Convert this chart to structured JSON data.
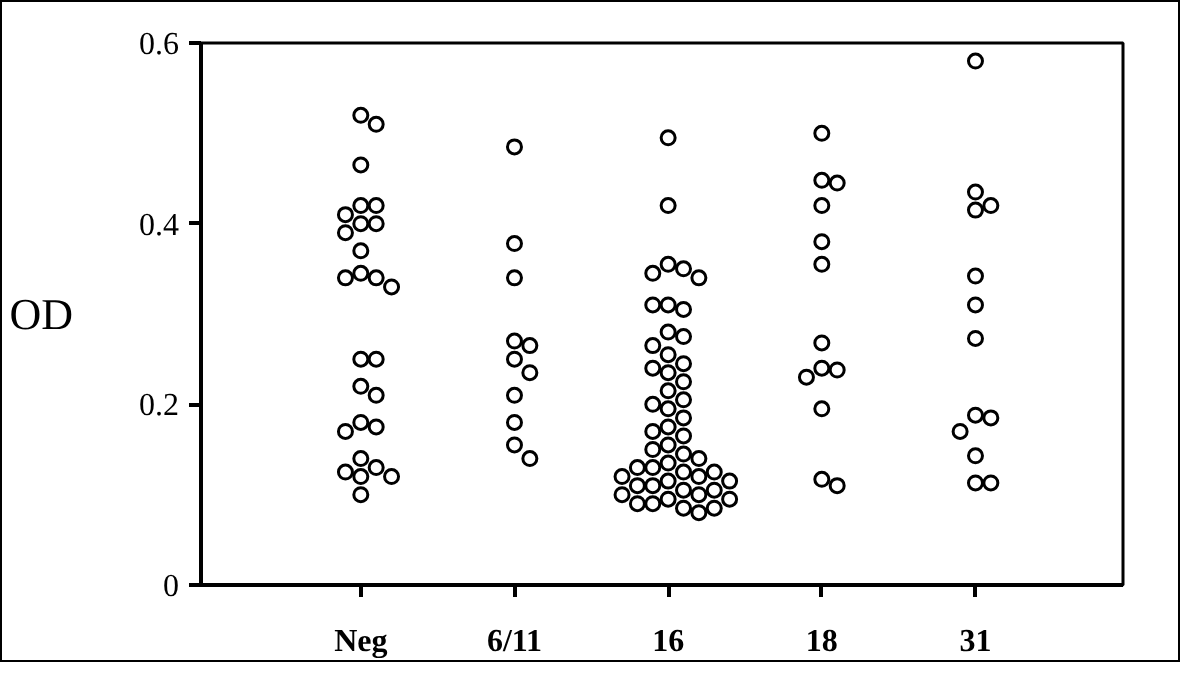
{
  "chart_data": {
    "type": "scatter",
    "ylabel": "OD",
    "categories": [
      "Neg",
      "6/11",
      "16",
      "18",
      "31"
    ],
    "ylim": [
      0,
      0.6
    ],
    "yticks": [
      0,
      0.2,
      0.4,
      0.6
    ],
    "grid": false,
    "marker": "circle",
    "series": [
      {
        "color": "#000000",
        "x": [
          "Neg",
          "Neg",
          "Neg",
          "Neg",
          "Neg",
          "Neg",
          "Neg",
          "Neg",
          "Neg",
          "Neg",
          "Neg",
          "Neg",
          "Neg",
          "Neg",
          "Neg",
          "Neg",
          "Neg",
          "Neg",
          "Neg",
          "Neg",
          "Neg",
          "Neg",
          "Neg",
          "Neg",
          "Neg",
          "Neg",
          "Neg"
        ],
        "values": [
          0.52,
          0.51,
          0.465,
          0.42,
          0.42,
          0.41,
          0.4,
          0.4,
          0.39,
          0.37,
          0.345,
          0.34,
          0.34,
          0.33,
          0.25,
          0.25,
          0.22,
          0.21,
          0.18,
          0.175,
          0.17,
          0.14,
          0.13,
          0.125,
          0.12,
          0.12,
          0.1
        ]
      },
      {
        "color": "#000000",
        "x": [
          "6/11",
          "6/11",
          "6/11",
          "6/11",
          "6/11",
          "6/11",
          "6/11",
          "6/11",
          "6/11",
          "6/11",
          "6/11"
        ],
        "values": [
          0.485,
          0.378,
          0.34,
          0.27,
          0.265,
          0.25,
          0.235,
          0.21,
          0.18,
          0.155,
          0.14
        ]
      },
      {
        "color": "#000000",
        "x": [
          "16",
          "16",
          "16",
          "16",
          "16",
          "16",
          "16",
          "16",
          "16",
          "16",
          "16",
          "16",
          "16",
          "16",
          "16",
          "16",
          "16",
          "16",
          "16",
          "16",
          "16",
          "16",
          "16",
          "16",
          "16",
          "16",
          "16",
          "16",
          "16",
          "16",
          "16",
          "16",
          "16",
          "16",
          "16",
          "16",
          "16",
          "16",
          "16",
          "16",
          "16",
          "16",
          "16",
          "16",
          "16",
          "16",
          "16",
          "16",
          "16",
          "16",
          "16"
        ],
        "values": [
          0.495,
          0.42,
          0.355,
          0.35,
          0.345,
          0.34,
          0.31,
          0.305,
          0.31,
          0.28,
          0.275,
          0.265,
          0.255,
          0.245,
          0.24,
          0.235,
          0.225,
          0.215,
          0.205,
          0.2,
          0.195,
          0.185,
          0.175,
          0.17,
          0.165,
          0.155,
          0.15,
          0.145,
          0.14,
          0.135,
          0.13,
          0.13,
          0.125,
          0.125,
          0.12,
          0.12,
          0.115,
          0.115,
          0.11,
          0.11,
          0.105,
          0.105,
          0.1,
          0.1,
          0.095,
          0.095,
          0.09,
          0.09,
          0.085,
          0.085,
          0.08
        ]
      },
      {
        "color": "#000000",
        "x": [
          "18",
          "18",
          "18",
          "18",
          "18",
          "18",
          "18",
          "18",
          "18",
          "18",
          "18",
          "18",
          "18"
        ],
        "values": [
          0.5,
          0.448,
          0.445,
          0.42,
          0.38,
          0.355,
          0.268,
          0.24,
          0.238,
          0.23,
          0.195,
          0.117,
          0.11
        ]
      },
      {
        "color": "#000000",
        "x": [
          "31",
          "31",
          "31",
          "31",
          "31",
          "31",
          "31",
          "31",
          "31",
          "31",
          "31",
          "31",
          "31"
        ],
        "values": [
          0.58,
          0.435,
          0.42,
          0.415,
          0.342,
          0.31,
          0.273,
          0.188,
          0.185,
          0.17,
          0.143,
          0.113,
          0.113
        ]
      }
    ]
  }
}
